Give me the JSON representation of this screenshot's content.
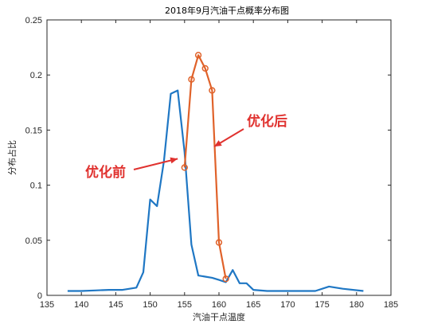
{
  "chart_data": {
    "type": "line",
    "title": "2018年9月汽油干点概率分布图",
    "xlabel": "汽油干点温度",
    "ylabel": "分布占比",
    "xlim": [
      135,
      185
    ],
    "ylim": [
      0,
      0.25
    ],
    "xticks": [
      135,
      140,
      145,
      150,
      155,
      160,
      165,
      170,
      175,
      180,
      185
    ],
    "yticks": [
      0,
      0.05,
      0.1,
      0.15,
      0.2,
      0.25
    ],
    "xtick_labels": [
      "135",
      "140",
      "145",
      "150",
      "155",
      "160",
      "165",
      "170",
      "175",
      "180",
      "185"
    ],
    "ytick_labels": [
      "0",
      "0.05",
      "0.1",
      "0.15",
      "0.2",
      "0.25"
    ],
    "grid": false,
    "series": [
      {
        "name": "优化前",
        "color": "#1f77c4",
        "marker": "none",
        "x": [
          138,
          140,
          142,
          144,
          146,
          147,
          148,
          149,
          150,
          151,
          152,
          153,
          154,
          155,
          156,
          157,
          158,
          159,
          160,
          161,
          162,
          163,
          164,
          165,
          167,
          170,
          172,
          174,
          176,
          178,
          181
        ],
        "y": [
          0.004,
          0.004,
          0.0045,
          0.005,
          0.005,
          0.006,
          0.007,
          0.021,
          0.087,
          0.081,
          0.122,
          0.183,
          0.186,
          0.13,
          0.046,
          0.018,
          0.017,
          0.016,
          0.014,
          0.012,
          0.023,
          0.011,
          0.011,
          0.005,
          0.004,
          0.004,
          0.004,
          0.004,
          0.008,
          0.006,
          0.004
        ]
      },
      {
        "name": "优化后",
        "color": "#e0622a",
        "marker": "circle",
        "x": [
          155,
          156,
          157,
          158,
          159,
          160,
          161
        ],
        "y": [
          0.116,
          0.196,
          0.218,
          0.206,
          0.186,
          0.048,
          0.015
        ]
      }
    ],
    "annotations": [
      {
        "text": "优化前",
        "arrow_to": [
          154,
          0.124
        ]
      },
      {
        "text": "优化后",
        "arrow_to": [
          159.3,
          0.135
        ]
      }
    ]
  },
  "colors": {
    "annotation": "#e0322f",
    "axis": "#262626"
  }
}
